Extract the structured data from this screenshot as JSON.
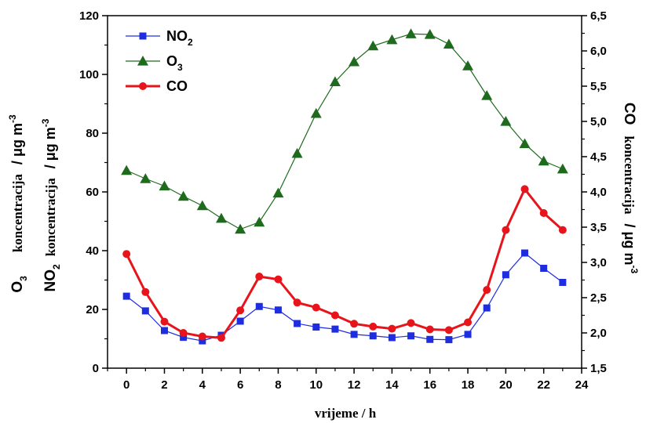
{
  "chart_data": {
    "type": "line",
    "x": [
      0,
      1,
      2,
      3,
      4,
      5,
      6,
      7,
      8,
      9,
      10,
      11,
      12,
      13,
      14,
      15,
      16,
      17,
      18,
      19,
      20,
      21,
      22,
      23
    ],
    "xlabel": "vrijeme / h",
    "xlim": [
      -1,
      24
    ],
    "xticks": [
      0,
      2,
      4,
      6,
      8,
      10,
      12,
      14,
      16,
      18,
      20,
      22,
      24
    ],
    "ylim_left": [
      0,
      120
    ],
    "yticks_left": [
      0,
      20,
      40,
      60,
      80,
      100,
      120
    ],
    "ylim_right": [
      1.5,
      6.5
    ],
    "yticks_right": [
      "1,5",
      "2,0",
      "2,5",
      "3,0",
      "3,5",
      "4,0",
      "4,5",
      "5,0",
      "5,5",
      "6,0",
      "6,5"
    ],
    "ylabel_left_1": {
      "sym": "O",
      "sub": "3",
      "text": "koncentracija",
      "unit": "/ μg m",
      "sup": "-3"
    },
    "ylabel_left_2": {
      "sym": "NO",
      "sub": "2",
      "text": "koncentracija",
      "unit": "/ μg m",
      "sup": "-3"
    },
    "ylabel_right": {
      "sym": "CO",
      "text": "koncentracija",
      "unit": "/ μg m",
      "sup": "-3"
    },
    "legend_position": "top-left",
    "series": [
      {
        "name": "NO",
        "name_sub": "2",
        "axis": "left",
        "color": "#1f2de0",
        "marker": "square",
        "values": [
          24.5,
          19.5,
          12.8,
          10.5,
          9.3,
          11.2,
          16.0,
          21.0,
          19.8,
          15.2,
          14.0,
          13.3,
          11.5,
          11.0,
          10.4,
          11.0,
          9.8,
          9.7,
          11.5,
          20.5,
          31.8,
          39.2,
          34.0,
          29.2
        ]
      },
      {
        "name": "O",
        "name_sub": "3",
        "axis": "left",
        "color": "#1e6b1e",
        "marker": "triangle",
        "values": [
          67.3,
          64.5,
          62.0,
          58.5,
          55.3,
          51.0,
          47.3,
          49.7,
          59.6,
          73.1,
          86.7,
          97.5,
          104.3,
          109.7,
          111.8,
          113.8,
          113.6,
          110.3,
          102.9,
          92.8,
          84.0,
          76.4,
          70.5,
          67.8
        ]
      },
      {
        "name": "CO",
        "axis": "right",
        "color": "#e8141c",
        "marker": "circle",
        "values": [
          3.12,
          2.58,
          2.16,
          2.0,
          1.95,
          1.93,
          2.32,
          2.8,
          2.76,
          2.43,
          2.36,
          2.25,
          2.13,
          2.09,
          2.06,
          2.14,
          2.05,
          2.04,
          2.15,
          2.61,
          3.46,
          4.04,
          3.7,
          3.46
        ]
      }
    ]
  }
}
